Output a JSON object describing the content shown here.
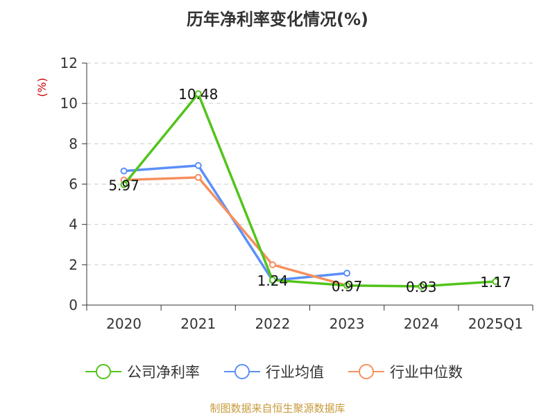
{
  "title": "历年净利率变化情况(%)",
  "source": "制图数据来自恒生聚源数据库",
  "chart_data": {
    "type": "line",
    "title": "历年净利率变化情况(%)",
    "ylabel": "(%)",
    "xlabel": "",
    "ylim": [
      0,
      12
    ],
    "yticks": [
      0,
      2,
      4,
      6,
      8,
      10,
      12
    ],
    "grid": true,
    "legend_position": "bottom",
    "categories": [
      "2020",
      "2021",
      "2022",
      "2023",
      "2024",
      "2025Q1"
    ],
    "series": [
      {
        "name": "公司净利率",
        "color": "#52c41a",
        "values": [
          5.97,
          10.48,
          1.24,
          0.97,
          0.93,
          1.17
        ],
        "labels": [
          "5.97",
          "10.48",
          "1.24",
          "0.97",
          "0.93",
          "1.17"
        ]
      },
      {
        "name": "行业均值",
        "color": "#5b8ff9",
        "values": [
          6.65,
          6.92,
          1.22,
          1.58,
          null,
          null
        ]
      },
      {
        "name": "行业中位数",
        "color": "#f6905e",
        "values": [
          6.2,
          6.33,
          2.0,
          0.97,
          null,
          null
        ]
      }
    ]
  }
}
